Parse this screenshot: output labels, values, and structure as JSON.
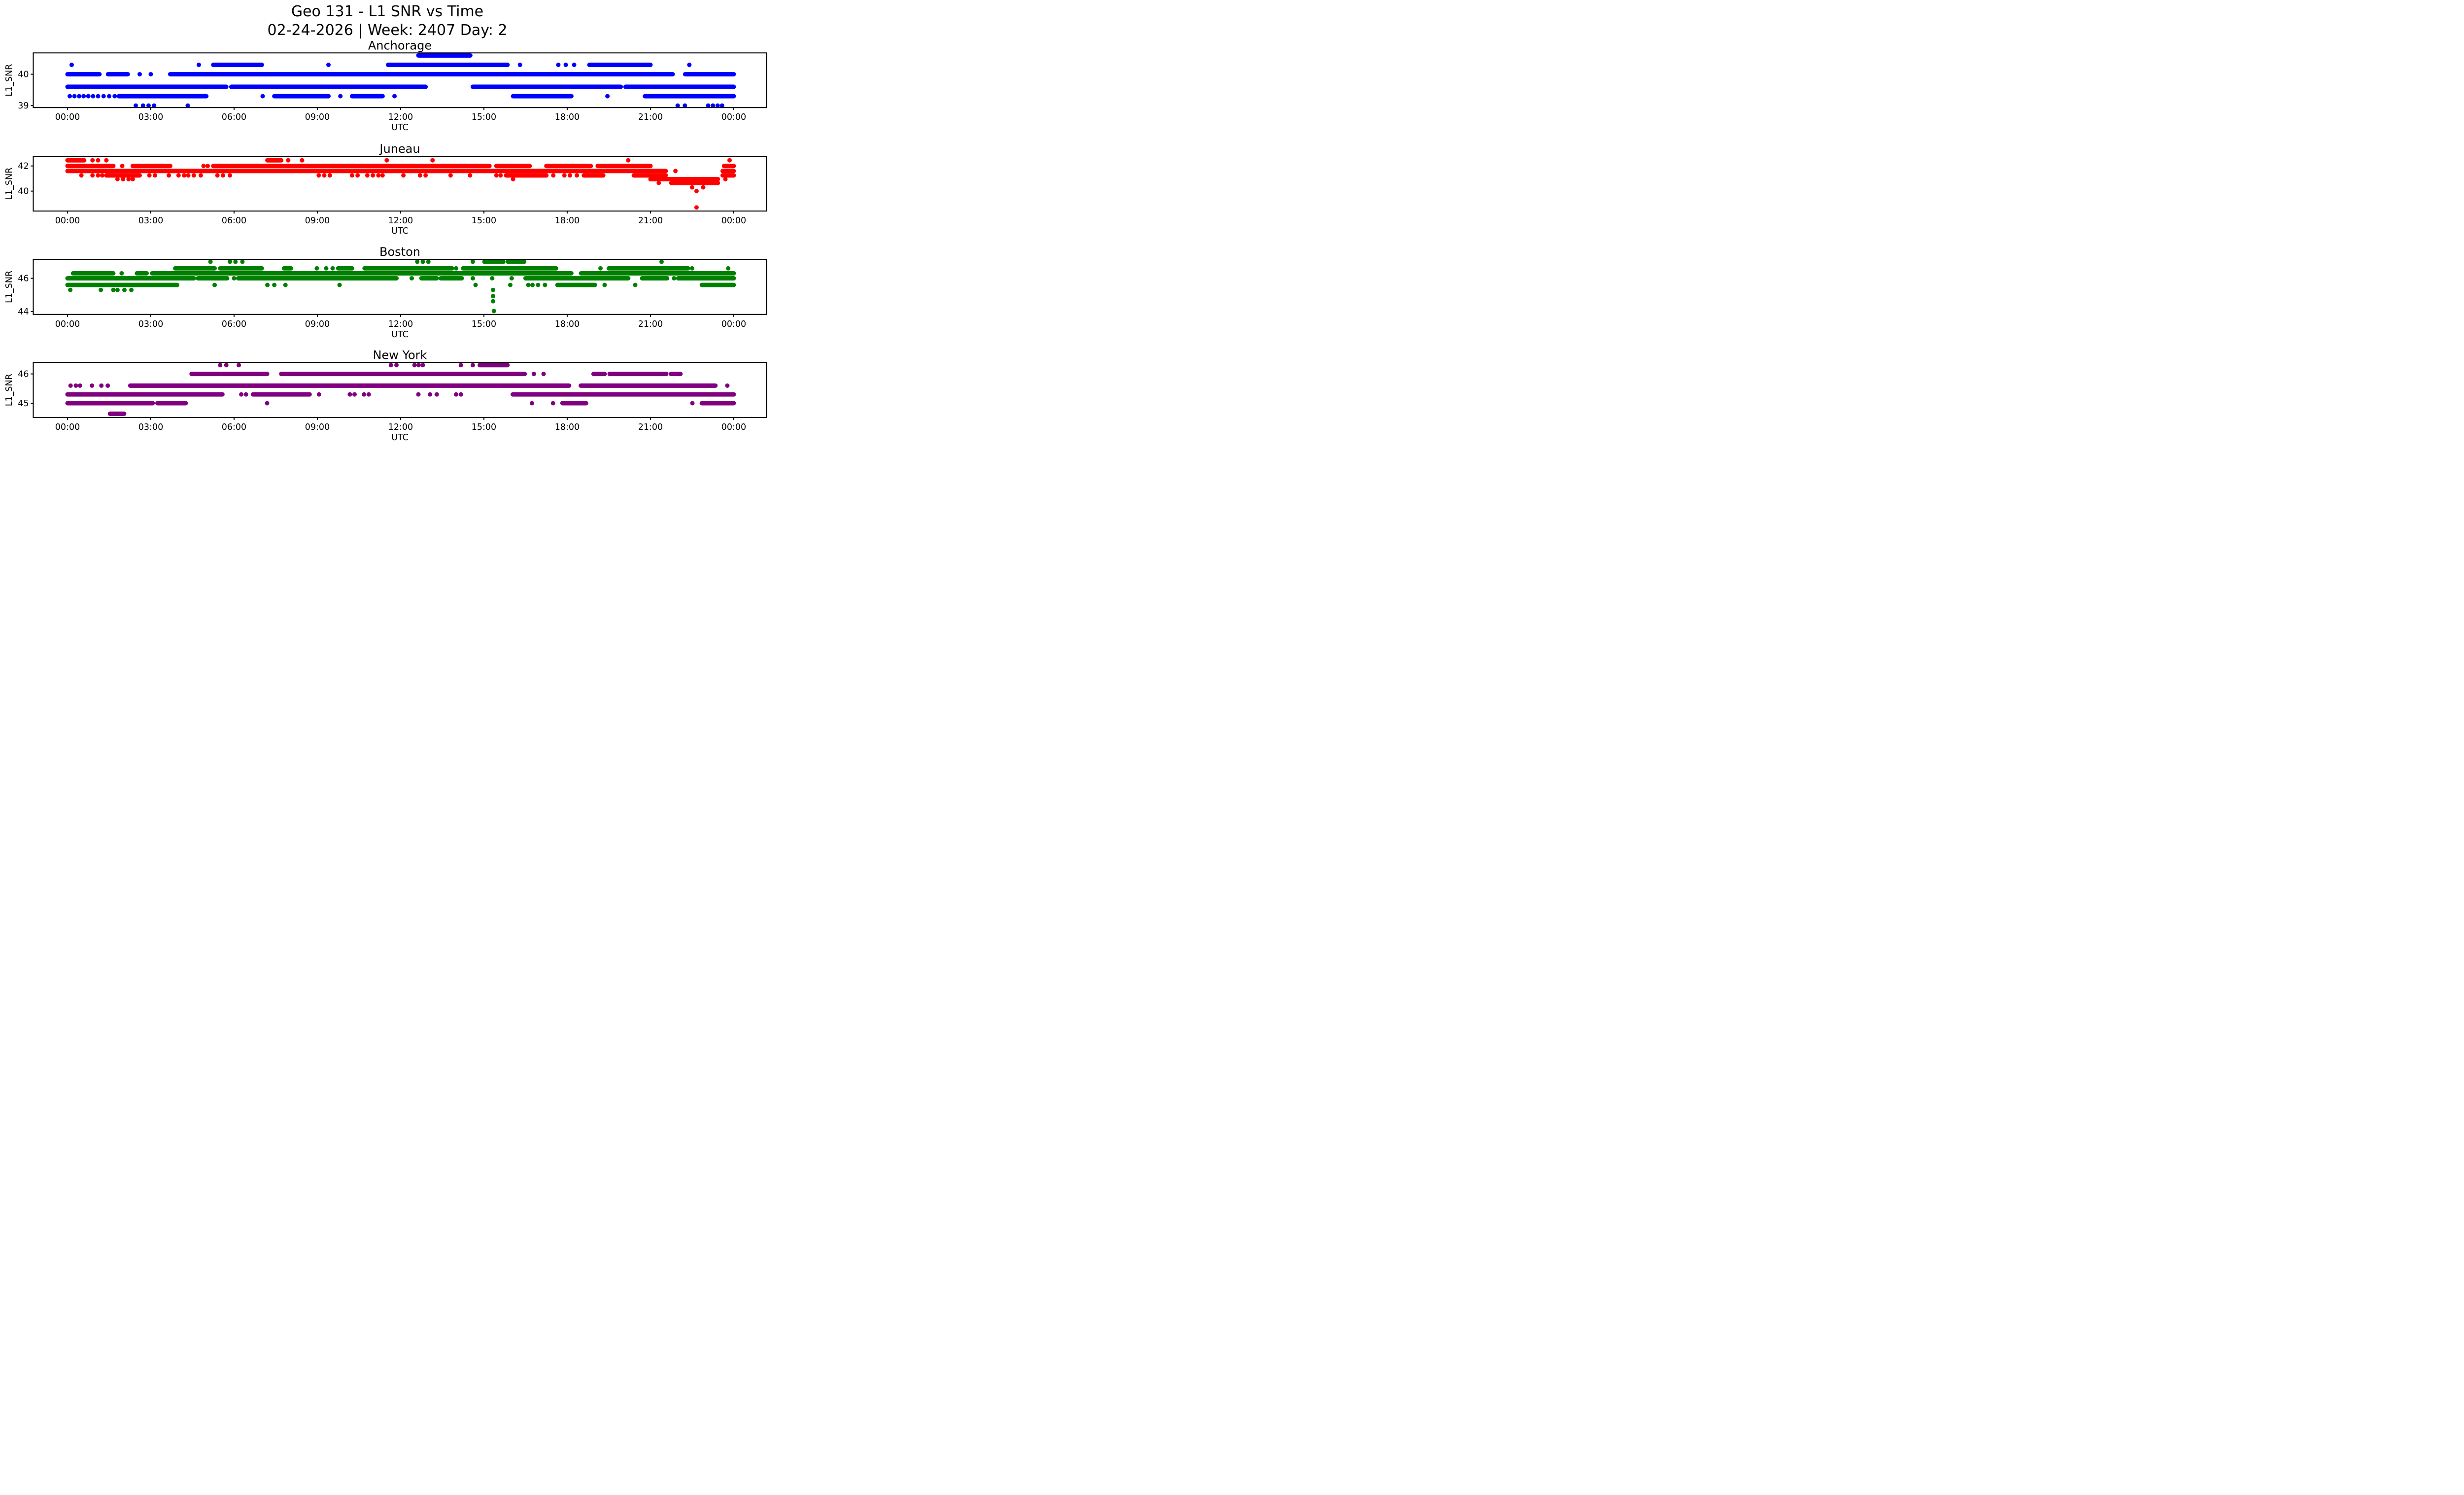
{
  "figure": {
    "suptitle_line1": "Geo 131 - L1 SNR vs Time",
    "suptitle_line2": "02-24-2026 | Week: 2407 Day: 2",
    "background": "#ffffff",
    "frame_color": "#000000"
  },
  "chart_data": [
    {
      "type": "scatter",
      "title": "Anchorage",
      "xlabel": "UTC",
      "ylabel": "L1_SNR",
      "color": "#0000ff",
      "x_unit": "hours UTC (0-24)",
      "xtick_hours": [
        0,
        3,
        6,
        9,
        12,
        15,
        18,
        21,
        24
      ],
      "xtick_labels": [
        "00:00",
        "03:00",
        "06:00",
        "09:00",
        "12:00",
        "15:00",
        "18:00",
        "21:00",
        "00:00"
      ],
      "yticks": [
        {
          "value": 40,
          "label": "40"
        },
        {
          "value": 39,
          "label": "39"
        }
      ],
      "ylim": [
        38.95,
        40.68
      ],
      "bands": [
        {
          "snr": 40.6,
          "bars": [
            [
              12.64,
              14.51
            ]
          ],
          "dots": []
        },
        {
          "snr": 40.3,
          "bars": [
            [
              5.25,
              7.0
            ],
            [
              11.55,
              15.85
            ],
            [
              18.8,
              21.0
            ]
          ],
          "dots": [
            0.15,
            4.73,
            9.4,
            16.3,
            17.68,
            17.95,
            18.25,
            22.4
          ]
        },
        {
          "snr": 40.0,
          "bars": [
            [
              0.0,
              1.15
            ],
            [
              1.46,
              2.17
            ],
            [
              3.7,
              21.8
            ],
            [
              22.25,
              24.0
            ]
          ],
          "dots": [
            2.6,
            3.0
          ]
        },
        {
          "snr": 39.6,
          "bars": [
            [
              0.0,
              5.72
            ],
            [
              5.9,
              12.9
            ],
            [
              14.6,
              19.93
            ],
            [
              20.1,
              24.0
            ]
          ],
          "dots": []
        },
        {
          "snr": 39.3,
          "bars": [
            [
              1.85,
              5.0
            ],
            [
              7.45,
              9.4
            ],
            [
              10.25,
              11.35
            ],
            [
              16.05,
              18.15
            ],
            [
              20.8,
              24.0
            ]
          ],
          "dots": [
            0.08,
            0.25,
            0.42,
            0.58,
            0.75,
            0.92,
            1.1,
            1.3,
            1.5,
            1.7,
            7.03,
            9.83,
            11.78,
            19.45
          ]
        },
        {
          "snr": 39.0,
          "bars": [],
          "dots": [
            2.46,
            2.72,
            2.92,
            3.12,
            4.33,
            21.98,
            22.24,
            23.08,
            23.25,
            23.42,
            23.58
          ]
        }
      ]
    },
    {
      "type": "scatter",
      "title": "Juneau",
      "xlabel": "UTC",
      "ylabel": "L1_SNR",
      "color": "#ff0000",
      "x_unit": "hours UTC (0-24)",
      "xtick_hours": [
        0,
        3,
        6,
        9,
        12,
        15,
        18,
        21,
        24
      ],
      "xtick_labels": [
        "00:00",
        "03:00",
        "06:00",
        "09:00",
        "12:00",
        "15:00",
        "18:00",
        "21:00",
        "00:00"
      ],
      "yticks": [
        {
          "value": 42,
          "label": "42"
        },
        {
          "value": 40,
          "label": "40"
        }
      ],
      "ylim": [
        38.42,
        42.77
      ],
      "bands": [
        {
          "snr": 42.45,
          "bars": [
            [
              0.0,
              0.6
            ],
            [
              7.2,
              7.7
            ]
          ],
          "dots": [
            0.9,
            1.1,
            1.4,
            7.95,
            8.45,
            11.5,
            13.15,
            20.2,
            23.85
          ]
        },
        {
          "snr": 42.0,
          "bars": [
            [
              0.0,
              1.65
            ],
            [
              2.35,
              3.7
            ],
            [
              5.25,
              15.2
            ],
            [
              15.45,
              16.65
            ],
            [
              17.25,
              18.85
            ],
            [
              19.1,
              21.0
            ],
            [
              23.65,
              24.0
            ]
          ],
          "dots": [
            1.97,
            4.9,
            5.05
          ]
        },
        {
          "snr": 41.6,
          "bars": [
            [
              0.0,
              21.55
            ],
            [
              23.6,
              24.0
            ]
          ],
          "dots": [
            21.9
          ]
        },
        {
          "snr": 41.25,
          "bars": [
            [
              1.4,
              2.6
            ],
            [
              15.8,
              17.25
            ],
            [
              18.6,
              19.3
            ],
            [
              20.4,
              21.55
            ],
            [
              23.6,
              24.0
            ]
          ],
          "dots": [
            0.5,
            0.9,
            1.1,
            1.25,
            2.95,
            3.15,
            3.65,
            4.0,
            4.2,
            4.35,
            4.55,
            4.8,
            5.4,
            5.6,
            5.85,
            9.05,
            9.25,
            9.45,
            10.25,
            10.45,
            10.8,
            11.0,
            11.2,
            11.35,
            12.1,
            12.7,
            12.9,
            13.8,
            14.5,
            15.45,
            15.6,
            17.5,
            17.9,
            18.1,
            18.35
          ]
        },
        {
          "snr": 40.95,
          "bars": [
            [
              21.0,
              23.43
            ]
          ],
          "dots": [
            1.8,
            2.0,
            2.2,
            2.35,
            16.05,
            23.7
          ]
        },
        {
          "snr": 40.65,
          "bars": [
            [
              21.75,
              23.43
            ]
          ],
          "dots": [
            21.3
          ]
        },
        {
          "snr": 40.3,
          "bars": [],
          "dots": [
            22.5,
            22.9
          ]
        },
        {
          "snr": 40.0,
          "bars": [],
          "dots": [
            22.66
          ]
        },
        {
          "snr": 38.7,
          "bars": [],
          "dots": [
            22.66
          ]
        }
      ]
    },
    {
      "type": "scatter",
      "title": "Boston",
      "xlabel": "UTC",
      "ylabel": "L1_SNR",
      "color": "#008000",
      "x_unit": "hours UTC (0-24)",
      "xtick_hours": [
        0,
        3,
        6,
        9,
        12,
        15,
        18,
        21,
        24
      ],
      "xtick_labels": [
        "00:00",
        "03:00",
        "06:00",
        "09:00",
        "12:00",
        "15:00",
        "18:00",
        "21:00",
        "00:00"
      ],
      "yticks": [
        {
          "value": 46,
          "label": "46"
        },
        {
          "value": 44,
          "label": "44"
        }
      ],
      "ylim": [
        43.83,
        47.14
      ],
      "bands": [
        {
          "snr": 47.0,
          "bars": [
            [
              15.02,
              15.7
            ],
            [
              15.87,
              16.45
            ]
          ],
          "dots": [
            5.15,
            5.85,
            6.05,
            6.3,
            12.6,
            12.8,
            13.0,
            14.6,
            21.4
          ]
        },
        {
          "snr": 46.6,
          "bars": [
            [
              3.88,
              5.3
            ],
            [
              5.5,
              7.0
            ],
            [
              7.8,
              8.05
            ],
            [
              9.75,
              10.25
            ],
            [
              10.7,
              13.85
            ],
            [
              14.25,
              17.6
            ],
            [
              19.5,
              22.35
            ]
          ],
          "dots": [
            8.98,
            9.32,
            9.55,
            14.0,
            19.2,
            22.5,
            23.8
          ]
        },
        {
          "snr": 46.3,
          "bars": [
            [
              0.2,
              1.65
            ],
            [
              2.5,
              2.85
            ],
            [
              3.05,
              18.15
            ],
            [
              18.5,
              24.0
            ]
          ],
          "dots": [
            1.95
          ]
        },
        {
          "snr": 46.0,
          "bars": [
            [
              0.0,
              4.55
            ],
            [
              4.7,
              5.75
            ],
            [
              6.15,
              11.85
            ],
            [
              12.75,
              13.3
            ],
            [
              13.45,
              14.2
            ],
            [
              16.5,
              20.2
            ],
            [
              20.7,
              21.6
            ],
            [
              22.0,
              24.0
            ]
          ],
          "dots": [
            6.0,
            12.4,
            14.6,
            15.3,
            16.0,
            21.85
          ]
        },
        {
          "snr": 45.6,
          "bars": [
            [
              0.0,
              3.95
            ],
            [
              17.65,
              19.0
            ],
            [
              22.85,
              24.0
            ]
          ],
          "dots": [
            5.3,
            7.2,
            7.45,
            7.85,
            9.8,
            14.7,
            15.95,
            16.6,
            16.75,
            16.95,
            17.2,
            19.35,
            20.45
          ]
        },
        {
          "snr": 45.3,
          "bars": [],
          "dots": [
            0.1,
            1.2,
            1.65,
            1.8,
            2.05,
            2.3,
            15.33
          ]
        },
        {
          "snr": 44.93,
          "bars": [],
          "dots": [
            15.33
          ]
        },
        {
          "snr": 44.62,
          "bars": [],
          "dots": [
            15.33
          ]
        },
        {
          "snr": 44.03,
          "bars": [],
          "dots": [
            15.36
          ]
        }
      ]
    },
    {
      "type": "scatter",
      "title": "New York",
      "xlabel": "UTC",
      "ylabel": "L1_SNR",
      "color": "#800080",
      "x_unit": "hours UTC (0-24)",
      "xtick_hours": [
        0,
        3,
        6,
        9,
        12,
        15,
        18,
        21,
        24
      ],
      "xtick_labels": [
        "00:00",
        "03:00",
        "06:00",
        "09:00",
        "12:00",
        "15:00",
        "18:00",
        "21:00",
        "00:00"
      ],
      "yticks": [
        {
          "value": 46,
          "label": "46"
        },
        {
          "value": 45,
          "label": "45"
        }
      ],
      "ylim": [
        44.51,
        46.38
      ],
      "bands": [
        {
          "snr": 46.3,
          "bars": [
            [
              14.85,
              15.85
            ]
          ],
          "dots": [
            5.5,
            5.72,
            6.17,
            11.65,
            11.85,
            12.5,
            12.65,
            12.8,
            14.17,
            14.6
          ]
        },
        {
          "snr": 46.0,
          "bars": [
            [
              4.47,
              5.49
            ],
            [
              5.58,
              7.19
            ],
            [
              7.7,
              16.47
            ],
            [
              18.95,
              19.35
            ],
            [
              19.53,
              21.57
            ],
            [
              21.74,
              22.08
            ]
          ],
          "dots": [
            16.8,
            17.15
          ]
        },
        {
          "snr": 45.6,
          "bars": [
            [
              2.26,
              18.07
            ],
            [
              18.49,
              23.34
            ]
          ],
          "dots": [
            0.11,
            0.3,
            0.45,
            0.88,
            1.22,
            1.45,
            23.77
          ]
        },
        {
          "snr": 45.3,
          "bars": [
            [
              0.0,
              5.58
            ],
            [
              6.68,
              8.72
            ],
            [
              16.04,
              24.0
            ]
          ],
          "dots": [
            6.26,
            6.43,
            9.06,
            10.17,
            10.34,
            10.68,
            10.85,
            12.64,
            13.06,
            13.3,
            14.0,
            14.17
          ]
        },
        {
          "snr": 45.0,
          "bars": [
            [
              0.0,
              3.07
            ],
            [
              3.24,
              4.26
            ],
            [
              17.83,
              18.68
            ],
            [
              22.85,
              24.0
            ]
          ],
          "dots": [
            7.19,
            16.73,
            17.49,
            22.51
          ]
        },
        {
          "snr": 44.64,
          "bars": [
            [
              1.53,
              2.04
            ]
          ],
          "dots": []
        }
      ]
    }
  ]
}
